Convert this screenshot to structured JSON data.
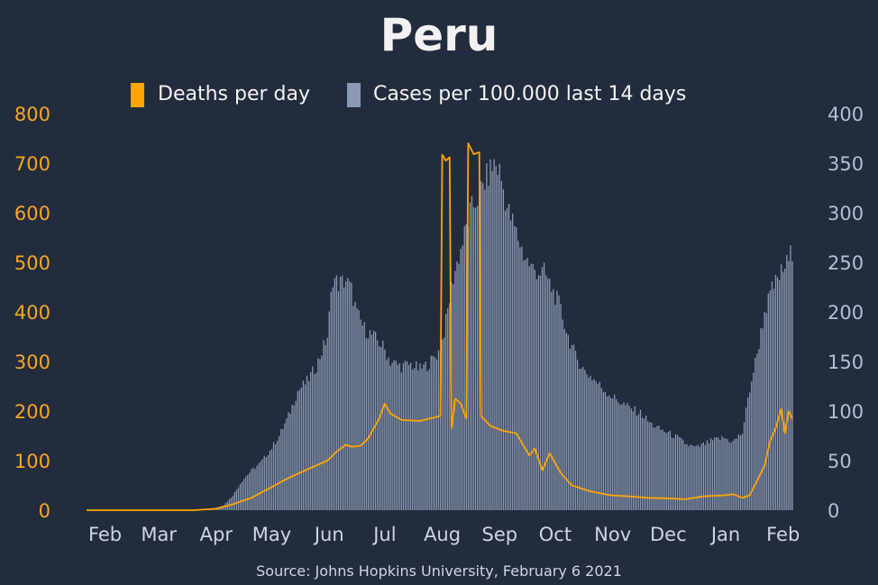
{
  "title": "Peru",
  "source": "Source: Johns Hopkins University, February 6 2021",
  "colors": {
    "background": "#232c3d",
    "deaths": "#ffa500",
    "cases": "#8a9ab5",
    "left_axis": "#f5a623",
    "right_axis": "#b4bfd4",
    "text": "#f2f2f2"
  },
  "legend": {
    "deaths_label": "Deaths per day",
    "cases_label": "Cases per 100.000 last 14 days"
  },
  "chart_data": {
    "type": "bar+line",
    "title": "Peru",
    "x_range": [
      "2020-01-22",
      "2021-02-06"
    ],
    "x_tick_labels": [
      "Feb",
      "Mar",
      "Apr",
      "May",
      "Jun",
      "Jul",
      "Aug",
      "Sep",
      "Oct",
      "Nov",
      "Dec",
      "Jan",
      "Feb"
    ],
    "x_tick_dates": [
      "2020-02-01",
      "2020-03-01",
      "2020-04-01",
      "2020-05-01",
      "2020-06-01",
      "2020-07-01",
      "2020-08-01",
      "2020-09-01",
      "2020-10-01",
      "2020-11-01",
      "2020-12-01",
      "2021-01-01",
      "2021-02-01"
    ],
    "y_left": {
      "label": "",
      "ylim": [
        0,
        800
      ],
      "ticks": [
        0,
        100,
        200,
        300,
        400,
        500,
        600,
        700,
        800
      ]
    },
    "y_right": {
      "label": "",
      "ylim": [
        0,
        400
      ],
      "ticks": [
        0,
        50,
        100,
        150,
        200,
        250,
        300,
        350,
        400
      ]
    },
    "legend_position": "top-center",
    "grid": false,
    "series": [
      {
        "name": "Cases per 100.000 last 14 days",
        "kind": "bar",
        "axis": "right",
        "points": [
          [
            "2020-03-20",
            0.5
          ],
          [
            "2020-03-31",
            2
          ],
          [
            "2020-04-05",
            5
          ],
          [
            "2020-04-10",
            15
          ],
          [
            "2020-04-15",
            30
          ],
          [
            "2020-04-20",
            40
          ],
          [
            "2020-04-25",
            48
          ],
          [
            "2020-04-30",
            60
          ],
          [
            "2020-05-05",
            75
          ],
          [
            "2020-05-10",
            95
          ],
          [
            "2020-05-15",
            120
          ],
          [
            "2020-05-20",
            130
          ],
          [
            "2020-05-25",
            145
          ],
          [
            "2020-05-31",
            175
          ],
          [
            "2020-06-03",
            235
          ],
          [
            "2020-06-06",
            228
          ],
          [
            "2020-06-10",
            232
          ],
          [
            "2020-06-13",
            222
          ],
          [
            "2020-06-16",
            198
          ],
          [
            "2020-06-20",
            183
          ],
          [
            "2020-06-25",
            175
          ],
          [
            "2020-06-30",
            165
          ],
          [
            "2020-07-04",
            150
          ],
          [
            "2020-07-10",
            145
          ],
          [
            "2020-07-15",
            147
          ],
          [
            "2020-07-20",
            142
          ],
          [
            "2020-07-25",
            148
          ],
          [
            "2020-07-31",
            162
          ],
          [
            "2020-08-03",
            190
          ],
          [
            "2020-08-07",
            235
          ],
          [
            "2020-08-12",
            270
          ],
          [
            "2020-08-16",
            300
          ],
          [
            "2020-08-20",
            315
          ],
          [
            "2020-08-25",
            335
          ],
          [
            "2020-08-29",
            350
          ],
          [
            "2020-09-01",
            342
          ],
          [
            "2020-09-05",
            305
          ],
          [
            "2020-09-09",
            285
          ],
          [
            "2020-09-14",
            258
          ],
          [
            "2020-09-18",
            245
          ],
          [
            "2020-09-22",
            240
          ],
          [
            "2020-09-25",
            240
          ],
          [
            "2020-09-28",
            228
          ],
          [
            "2020-10-03",
            208
          ],
          [
            "2020-10-08",
            175
          ],
          [
            "2020-10-12",
            155
          ],
          [
            "2020-10-17",
            140
          ],
          [
            "2020-10-22",
            132
          ],
          [
            "2020-10-27",
            122
          ],
          [
            "2020-11-01",
            114
          ],
          [
            "2020-11-06",
            108
          ],
          [
            "2020-11-11",
            102
          ],
          [
            "2020-11-16",
            98
          ],
          [
            "2020-11-21",
            88
          ],
          [
            "2020-11-26",
            82
          ],
          [
            "2020-12-01",
            78
          ],
          [
            "2020-12-06",
            73
          ],
          [
            "2020-12-11",
            66
          ],
          [
            "2020-12-16",
            63
          ],
          [
            "2020-12-21",
            67
          ],
          [
            "2020-12-26",
            71
          ],
          [
            "2020-12-31",
            73
          ],
          [
            "2021-01-05",
            69
          ],
          [
            "2021-01-10",
            78
          ],
          [
            "2021-01-14",
            122
          ],
          [
            "2021-01-18",
            158
          ],
          [
            "2021-01-22",
            200
          ],
          [
            "2021-01-26",
            222
          ],
          [
            "2021-01-30",
            236
          ],
          [
            "2021-02-04",
            252
          ],
          [
            "2021-02-06",
            262
          ]
        ]
      },
      {
        "name": "Deaths per day",
        "kind": "line",
        "axis": "left",
        "points": [
          [
            "2020-01-22",
            0
          ],
          [
            "2020-03-20",
            0
          ],
          [
            "2020-04-01",
            3
          ],
          [
            "2020-04-10",
            12
          ],
          [
            "2020-04-20",
            25
          ],
          [
            "2020-04-30",
            45
          ],
          [
            "2020-05-10",
            65
          ],
          [
            "2020-05-20",
            82
          ],
          [
            "2020-05-31",
            100
          ],
          [
            "2020-06-05",
            118
          ],
          [
            "2020-06-10",
            132
          ],
          [
            "2020-06-13",
            128
          ],
          [
            "2020-06-18",
            130
          ],
          [
            "2020-06-22",
            145
          ],
          [
            "2020-06-28",
            185
          ],
          [
            "2020-07-01",
            215
          ],
          [
            "2020-07-04",
            195
          ],
          [
            "2020-07-10",
            182
          ],
          [
            "2020-07-20",
            180
          ],
          [
            "2020-07-31",
            190
          ],
          [
            "2020-08-01",
            717
          ],
          [
            "2020-08-03",
            705
          ],
          [
            "2020-08-05",
            712
          ],
          [
            "2020-08-06",
            165
          ],
          [
            "2020-08-08",
            225
          ],
          [
            "2020-08-11",
            215
          ],
          [
            "2020-08-14",
            185
          ],
          [
            "2020-08-15",
            740
          ],
          [
            "2020-08-18",
            718
          ],
          [
            "2020-08-21",
            722
          ],
          [
            "2020-08-22",
            190
          ],
          [
            "2020-08-27",
            170
          ],
          [
            "2020-09-03",
            160
          ],
          [
            "2020-09-10",
            155
          ],
          [
            "2020-09-17",
            110
          ],
          [
            "2020-09-20",
            125
          ],
          [
            "2020-09-24",
            80
          ],
          [
            "2020-09-28",
            115
          ],
          [
            "2020-10-04",
            75
          ],
          [
            "2020-10-10",
            50
          ],
          [
            "2020-10-20",
            38
          ],
          [
            "2020-10-31",
            30
          ],
          [
            "2020-11-10",
            28
          ],
          [
            "2020-11-20",
            25
          ],
          [
            "2020-11-30",
            24
          ],
          [
            "2020-12-10",
            22
          ],
          [
            "2020-12-20",
            28
          ],
          [
            "2020-12-31",
            30
          ],
          [
            "2021-01-05",
            32
          ],
          [
            "2021-01-10",
            25
          ],
          [
            "2021-01-14",
            30
          ],
          [
            "2021-01-18",
            60
          ],
          [
            "2021-01-22",
            90
          ],
          [
            "2021-01-25",
            140
          ],
          [
            "2021-01-28",
            165
          ],
          [
            "2021-01-31",
            205
          ],
          [
            "2021-02-02",
            155
          ],
          [
            "2021-02-04",
            200
          ],
          [
            "2021-02-06",
            185
          ]
        ]
      }
    ]
  }
}
